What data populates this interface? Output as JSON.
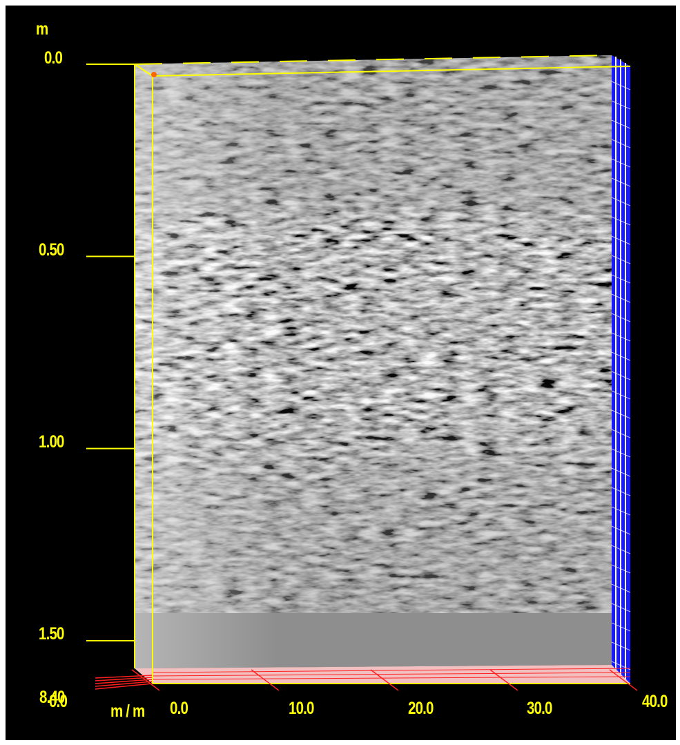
{
  "chart_data": {
    "type": "heatmap",
    "title": "",
    "ylabel": "m",
    "xlabel": "m / m",
    "y_axis": {
      "direction": "depth (increasing downward)",
      "range": [
        0.0,
        1.7
      ],
      "tick_labels": [
        "0.0",
        "0.50",
        "1.00",
        "1.50"
      ]
    },
    "x_axis": {
      "range": [
        0.0,
        40.0
      ],
      "tick_labels": [
        "0.0",
        "10.0",
        "20.0",
        "30.0",
        "40.0"
      ]
    },
    "depth_axis_overlapped_labels": [
      "8.40",
      "0.0"
    ],
    "colormap": "grayscale",
    "features": [
      {
        "depth_range_m": [
          0.4,
          1.1
        ],
        "description": "strong reflection band, brightest near x 0-10"
      }
    ],
    "grid": false,
    "render": "3D block, front face"
  },
  "colors": {
    "axis": "#ffff00",
    "tick_label": "#ffff00",
    "side_face": "#1a1aff",
    "floor_grid": "#ff3030",
    "marker": "#ff6600",
    "background": "#000000"
  }
}
